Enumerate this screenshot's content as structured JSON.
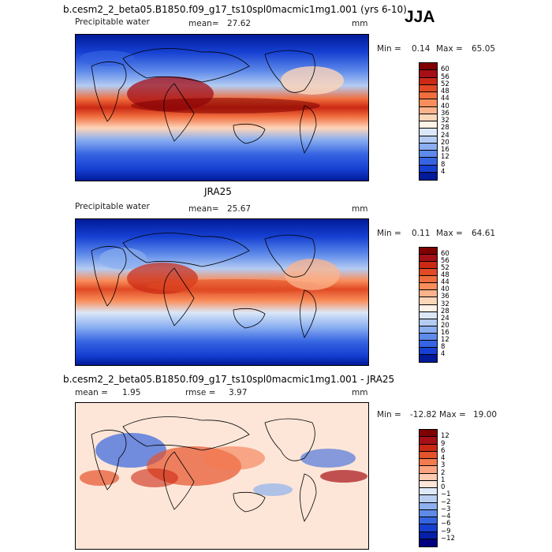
{
  "season": "JJA",
  "panels": [
    {
      "title": "b.cesm2_2_beta05.B1850.f09_g17_ts10spl0macmic1mg1.001 (yrs 6-10)",
      "variable": "Precipitable water",
      "stat1_label": "mean=",
      "stat1_value": "27.62",
      "stat2_label": "",
      "stat2_value": "",
      "units": "mm",
      "min_label": "Min =",
      "min_value": "0.14",
      "max_label": "Max =",
      "max_value": "65.05",
      "colorbar_labels": [
        "60",
        "56",
        "52",
        "48",
        "44",
        "40",
        "36",
        "32",
        "28",
        "24",
        "20",
        "16",
        "12",
        "8",
        "4"
      ],
      "colorbar_colors": [
        "#7f0000",
        "#a50f15",
        "#cb2914",
        "#e04a24",
        "#f06d3d",
        "#f98e5c",
        "#fcb38c",
        "#fdd5b9",
        "#fff2e6",
        "#dbe7f8",
        "#b4ccf2",
        "#8aaef0",
        "#5e8aea",
        "#3664e2",
        "#1640d2",
        "#001a99"
      ]
    },
    {
      "title": "JRA25",
      "variable": "Precipitable water",
      "stat1_label": "mean=",
      "stat1_value": "25.67",
      "stat2_label": "",
      "stat2_value": "",
      "units": "mm",
      "min_label": "Min =",
      "min_value": "0.11",
      "max_label": "Max =",
      "max_value": "64.61",
      "colorbar_labels": [
        "60",
        "56",
        "52",
        "48",
        "44",
        "40",
        "36",
        "32",
        "28",
        "24",
        "20",
        "16",
        "12",
        "8",
        "4"
      ],
      "colorbar_colors": [
        "#7f0000",
        "#a50f15",
        "#cb2914",
        "#e04a24",
        "#f06d3d",
        "#f98e5c",
        "#fcb38c",
        "#fdd5b9",
        "#fff2e6",
        "#dbe7f8",
        "#b4ccf2",
        "#8aaef0",
        "#5e8aea",
        "#3664e2",
        "#1640d2",
        "#001a99"
      ]
    },
    {
      "title": "b.cesm2_2_beta05.B1850.f09_g17_ts10spl0macmic1mg1.001 - JRA25",
      "variable": "",
      "stat1_label": "mean =",
      "stat1_value": "1.95",
      "stat2_label": "rmse =",
      "stat2_value": "3.97",
      "units": "mm",
      "min_label": "Min =",
      "min_value": "-12.82",
      "max_label": "Max =",
      "max_value": "19.00",
      "colorbar_labels": [
        "12",
        "9",
        "6",
        "4",
        "3",
        "2",
        "1",
        "0",
        "−1",
        "−2",
        "−3",
        "−4",
        "−6",
        "−9",
        "−12"
      ],
      "colorbar_colors": [
        "#7f0000",
        "#a50f15",
        "#cb2914",
        "#e5532c",
        "#f47a4f",
        "#fba37f",
        "#fdcbb1",
        "#fde6d8",
        "#dfeaf9",
        "#b9cff2",
        "#8db0ee",
        "#5f8be8",
        "#3565de",
        "#173fcf",
        "#051fa8",
        "#00007f"
      ]
    }
  ]
}
